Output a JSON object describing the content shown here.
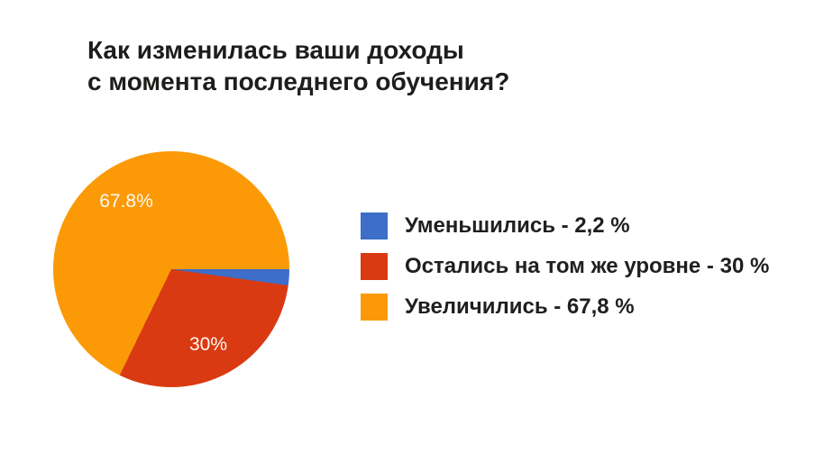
{
  "chart_data": {
    "type": "pie",
    "title": "Как изменилась ваши доходы с момента последнего обучения?",
    "title_lines": [
      "Как изменилась ваши доходы",
      "с момента последнего обучения?"
    ],
    "categories": [
      "Уменьшились",
      "Остались на том же уровне",
      "Увеличились"
    ],
    "values": [
      2.2,
      30,
      67.8
    ],
    "unit": "%",
    "colors": [
      "#3d6ec8",
      "#d93a12",
      "#fb9a06"
    ],
    "slice_labels": [
      {
        "text": ""
      },
      {
        "text": "30%"
      },
      {
        "text": "67.8%"
      }
    ],
    "start_angle_css_deg": 90,
    "direction": "clockwise",
    "legend_position": "right",
    "legend": [
      {
        "label": "Уменьшились - 2,2 %",
        "color": "#3d6ec8"
      },
      {
        "label": "Остались на том же уровне - 30 %",
        "color": "#d93a12"
      },
      {
        "label": "Увеличились - 67,8 %",
        "color": "#fb9a06"
      }
    ],
    "title_color": "#1d1d1b",
    "slice_label_color": "#fdf9f4",
    "background": "#ffffff"
  }
}
